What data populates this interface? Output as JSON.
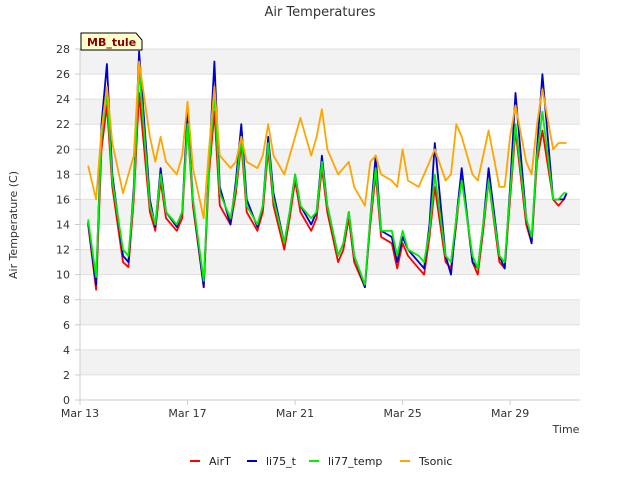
{
  "chart_data": {
    "type": "line",
    "title": "Air Temperatures",
    "site_label": "MB_tule",
    "xlabel": "Time",
    "ylabel": "Air Temperature (C)",
    "ylim": [
      0,
      28
    ],
    "yticks": [
      0,
      2,
      4,
      6,
      8,
      10,
      12,
      14,
      16,
      18,
      20,
      22,
      24,
      26,
      28
    ],
    "xlim": [
      13,
      31.6
    ],
    "xticks": [
      {
        "label": "Mar 13",
        "day": 13
      },
      {
        "label": "Mar 17",
        "day": 17
      },
      {
        "label": "Mar 21",
        "day": 21
      },
      {
        "label": "Mar 25",
        "day": 25
      },
      {
        "label": "Mar 29",
        "day": 29
      }
    ],
    "grid": true,
    "legend_position": "bottom",
    "x_units": "day of March",
    "x": [
      13.3,
      13.6,
      13.8,
      14.0,
      14.2,
      14.6,
      14.8,
      15.0,
      15.2,
      15.6,
      15.8,
      16.0,
      16.2,
      16.6,
      16.8,
      17.0,
      17.2,
      17.6,
      17.8,
      18.0,
      18.2,
      18.6,
      18.8,
      19.0,
      19.2,
      19.6,
      19.8,
      20.0,
      20.2,
      20.6,
      20.8,
      21.0,
      21.2,
      21.6,
      21.8,
      22.0,
      22.2,
      22.6,
      22.8,
      23.0,
      23.2,
      23.6,
      23.8,
      24.0,
      24.2,
      24.6,
      24.8,
      25.0,
      25.2,
      25.6,
      25.8,
      26.0,
      26.2,
      26.6,
      26.8,
      27.0,
      27.2,
      27.6,
      27.8,
      28.0,
      28.2,
      28.6,
      28.8,
      29.0,
      29.2,
      29.6,
      29.8,
      30.0,
      30.2,
      30.6,
      30.8,
      31.0,
      31.1
    ],
    "series": [
      {
        "name": "AirT",
        "color": "#ff0000",
        "values": [
          14.0,
          8.8,
          20.0,
          23.5,
          17.0,
          11.0,
          10.6,
          16.0,
          24.5,
          15.0,
          13.5,
          17.5,
          14.5,
          13.5,
          14.5,
          22.0,
          15.5,
          9.0,
          18.0,
          23.0,
          15.5,
          14.0,
          16.5,
          20.5,
          15.0,
          13.5,
          15.0,
          20.0,
          15.5,
          12.0,
          14.5,
          17.5,
          15.0,
          13.5,
          14.5,
          18.5,
          15.0,
          11.0,
          12.0,
          14.5,
          11.0,
          9.0,
          14.0,
          18.0,
          13.0,
          12.5,
          10.5,
          12.5,
          11.5,
          10.5,
          10.0,
          13.0,
          17.0,
          11.0,
          10.5,
          14.0,
          18.0,
          11.0,
          10.0,
          13.5,
          17.5,
          11.0,
          10.5,
          16.0,
          21.5,
          14.0,
          12.5,
          19.0,
          21.5,
          16.0,
          15.5,
          16.0,
          16.5
        ]
      },
      {
        "name": "li75_t",
        "color": "#0000cc",
        "values": [
          14.2,
          9.2,
          22.0,
          26.8,
          18.0,
          11.5,
          11.0,
          17.0,
          27.8,
          16.0,
          13.8,
          18.5,
          15.0,
          13.8,
          15.0,
          23.0,
          16.0,
          9.0,
          19.0,
          27.0,
          17.0,
          14.0,
          17.5,
          22.0,
          16.0,
          13.8,
          15.5,
          21.0,
          16.5,
          12.5,
          15.0,
          18.0,
          15.5,
          14.0,
          15.0,
          19.5,
          15.5,
          11.5,
          12.5,
          15.0,
          11.5,
          9.0,
          14.5,
          19.5,
          13.5,
          13.0,
          11.0,
          13.0,
          12.0,
          11.0,
          10.5,
          14.0,
          20.5,
          11.5,
          10.0,
          14.5,
          18.5,
          11.0,
          10.5,
          14.0,
          18.5,
          11.5,
          10.5,
          17.0,
          24.5,
          14.5,
          12.5,
          20.0,
          26.0,
          16.0,
          16.0,
          16.0,
          16.5
        ]
      },
      {
        "name": "li77_temp",
        "color": "#00ee00",
        "values": [
          14.4,
          9.8,
          21.0,
          24.5,
          17.5,
          12.0,
          11.5,
          16.5,
          26.5,
          15.5,
          14.0,
          18.0,
          15.0,
          14.0,
          15.0,
          22.0,
          16.0,
          9.5,
          18.5,
          24.5,
          16.5,
          14.5,
          17.0,
          21.0,
          15.5,
          14.0,
          15.5,
          20.5,
          16.0,
          12.5,
          15.0,
          18.0,
          15.5,
          14.5,
          15.0,
          19.0,
          15.5,
          11.5,
          12.5,
          15.0,
          11.5,
          9.2,
          14.5,
          18.5,
          13.5,
          13.5,
          11.5,
          13.5,
          12.0,
          11.5,
          11.0,
          13.5,
          18.0,
          11.5,
          11.0,
          14.5,
          17.5,
          11.5,
          10.5,
          14.0,
          17.5,
          11.5,
          11.0,
          16.5,
          22.0,
          14.5,
          13.0,
          19.5,
          23.0,
          16.0,
          16.0,
          16.5,
          16.5
        ]
      },
      {
        "name": "Tsonic",
        "color": "#ffa500",
        "values": [
          18.7,
          16.0,
          21.5,
          25.0,
          20.5,
          16.5,
          18.0,
          19.5,
          27.0,
          21.0,
          19.0,
          21.0,
          19.0,
          18.0,
          19.5,
          23.8,
          18.5,
          14.5,
          20.0,
          25.0,
          19.5,
          18.5,
          19.0,
          21.0,
          19.0,
          18.5,
          19.5,
          22.0,
          19.5,
          18.0,
          19.5,
          21.0,
          22.5,
          19.5,
          21.0,
          23.2,
          20.0,
          18.0,
          18.5,
          19.0,
          17.0,
          15.5,
          19.0,
          19.5,
          18.0,
          17.5,
          17.0,
          20.0,
          17.5,
          17.0,
          18.0,
          19.0,
          20.0,
          17.5,
          18.0,
          22.0,
          21.0,
          18.0,
          17.5,
          19.5,
          21.5,
          17.0,
          17.0,
          21.0,
          23.5,
          19.0,
          18.0,
          22.0,
          24.8,
          20.0,
          20.5,
          20.5,
          20.5
        ]
      }
    ]
  }
}
